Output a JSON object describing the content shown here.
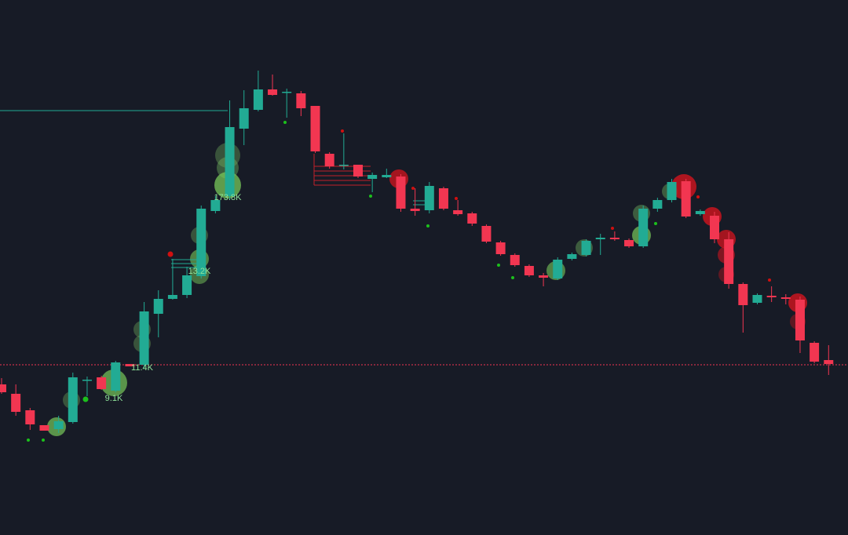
{
  "chart_data": {
    "type": "candlestick",
    "up_color": "#22ab94",
    "down_color": "#f23651",
    "ylim": [
      0,
      682
    ],
    "categories": [
      null,
      null,
      null,
      null,
      null,
      null,
      null,
      null,
      null,
      null,
      null,
      null,
      null,
      null,
      null,
      null,
      null,
      null,
      null,
      null,
      null,
      null,
      null,
      null,
      null,
      null,
      null,
      null,
      null,
      null,
      null,
      null,
      null,
      null,
      null,
      null,
      null,
      null,
      null,
      null,
      null,
      null,
      null,
      null,
      null,
      null,
      null,
      null,
      null,
      null,
      null,
      null,
      null,
      null,
      null,
      null,
      null,
      null,
      null
    ],
    "open": [
      192,
      180,
      159,
      140,
      135,
      144,
      198,
      201,
      184,
      218,
      217,
      282,
      301,
      306,
      330,
      413,
      432,
      518,
      542,
      568,
      565,
      563,
      547,
      486,
      472,
      472,
      454,
      456,
      457,
      416,
      414,
      442,
      414,
      410,
      394,
      373,
      357,
      343,
      331,
      327,
      352,
      357,
      377,
      379,
      376,
      368,
      416,
      427,
      451,
      409,
      407,
      377,
      320,
      296,
      305,
      303,
      300,
      245,
      223
    ],
    "high": [
      200,
      192,
      162,
      140,
      152,
      207,
      202,
      203,
      222,
      218,
      297,
      312,
      352,
      342,
      420,
      432,
      554,
      567,
      592,
      587,
      569,
      566,
      547,
      488,
      512,
      472,
      462,
      467,
      460,
      442,
      450,
      444,
      427,
      412,
      396,
      375,
      359,
      345,
      334,
      354,
      360,
      377,
      384,
      387,
      378,
      420,
      430,
      454,
      454,
      415,
      412,
      386,
      322,
      308,
      317,
      307,
      304,
      247,
      242
    ],
    "low": [
      180,
      152,
      134,
      133,
      130,
      142,
      177,
      185,
      182,
      215,
      212,
      252,
      300,
      302,
      327,
      410,
      427,
      497,
      540,
      560,
      532,
      534,
      487,
      467,
      466,
      455,
      437,
      455,
      412,
      407,
      410,
      414,
      407,
      394,
      372,
      356,
      342,
      329,
      317,
      325,
      350,
      355,
      357,
      375,
      366,
      366,
      412,
      424,
      404,
      407,
      372,
      314,
      258,
      294,
      297,
      294,
      232,
      219,
      204
    ],
    "close": [
      182,
      157,
      141,
      133,
      145,
      201,
      198,
      186,
      220,
      215,
      285,
      301,
      306,
      331,
      416,
      427,
      520,
      544,
      568,
      561,
      565,
      544,
      489,
      470,
      472,
      457,
      459,
      459,
      416,
      413,
      445,
      416,
      409,
      397,
      374,
      358,
      344,
      331,
      328,
      351,
      358,
      375,
      379,
      377,
      368,
      416,
      427,
      450,
      406,
      413,
      377,
      320,
      293,
      306,
      303,
      301,
      248,
      221,
      218
    ],
    "levels": [
      {
        "value": 541,
        "color": "#22ab94"
      },
      {
        "value": 217,
        "color": "#f23651"
      }
    ],
    "volume_labels": [
      "173.8K",
      "13.2K",
      "11.4K",
      "9.1K"
    ]
  }
}
